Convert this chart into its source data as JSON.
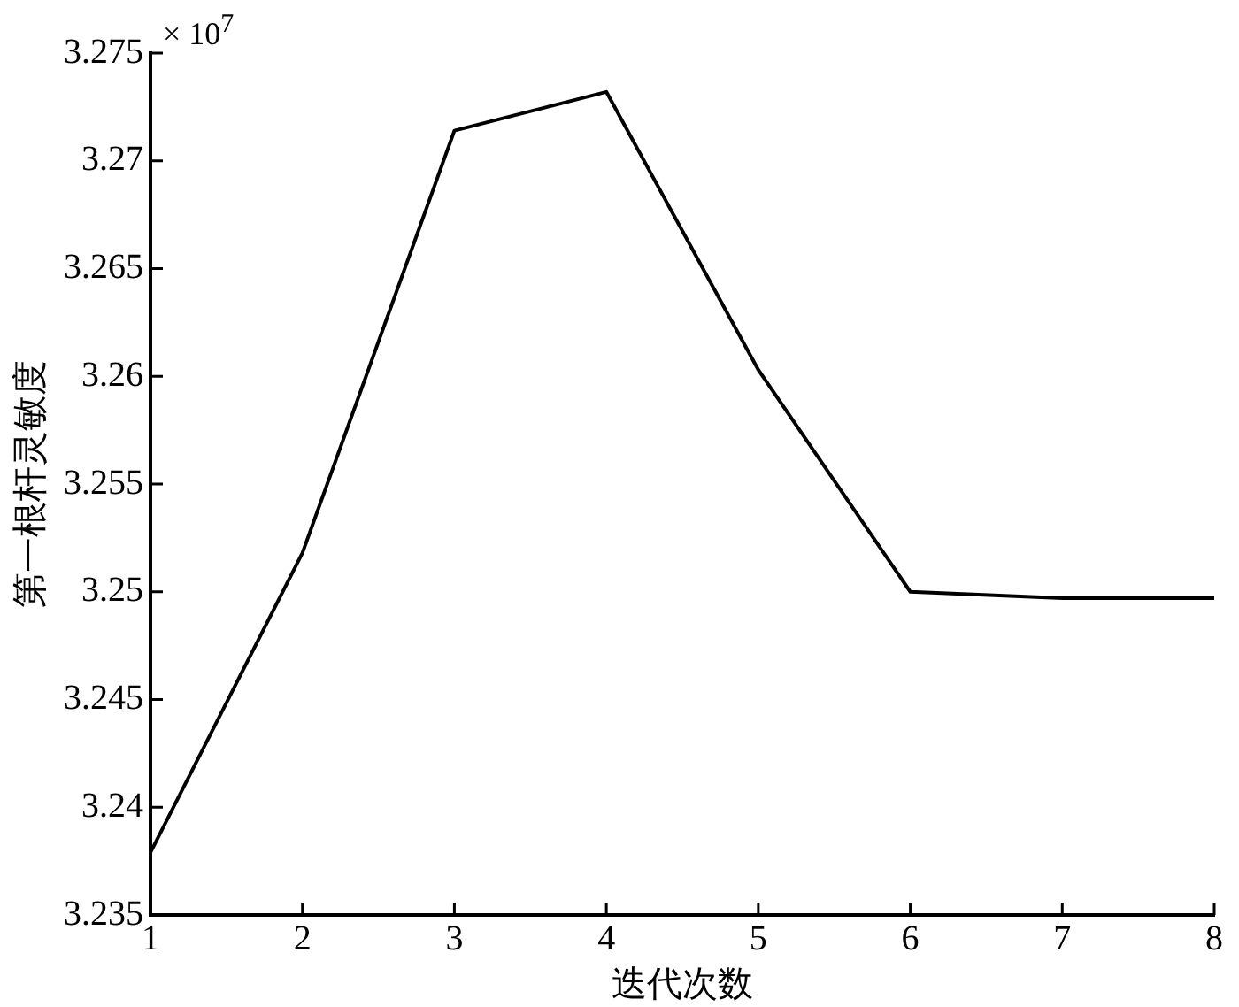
{
  "chart_data": {
    "type": "line",
    "xlabel": "迭代次数",
    "ylabel": "第一根杆灵敏度",
    "x": [
      1,
      2,
      3,
      4,
      5,
      6,
      7,
      8
    ],
    "series": [
      {
        "color": "#000000",
        "values": [
          3.2379,
          3.2518,
          3.2714,
          3.2732,
          3.2603,
          3.25,
          3.2497,
          3.2497
        ]
      }
    ],
    "xlim": [
      1,
      8
    ],
    "xticks": [
      1,
      2,
      3,
      4,
      5,
      6,
      7,
      8
    ],
    "ylim": [
      3.235,
      3.275
    ],
    "yticks": [
      3.235,
      3.24,
      3.245,
      3.25,
      3.255,
      3.26,
      3.265,
      3.27,
      3.275
    ],
    "annotations": [
      "× 10$^{7}$"
    ],
    "grid": false,
    "legend": false,
    "marker": "none",
    "line_style": "solid"
  }
}
